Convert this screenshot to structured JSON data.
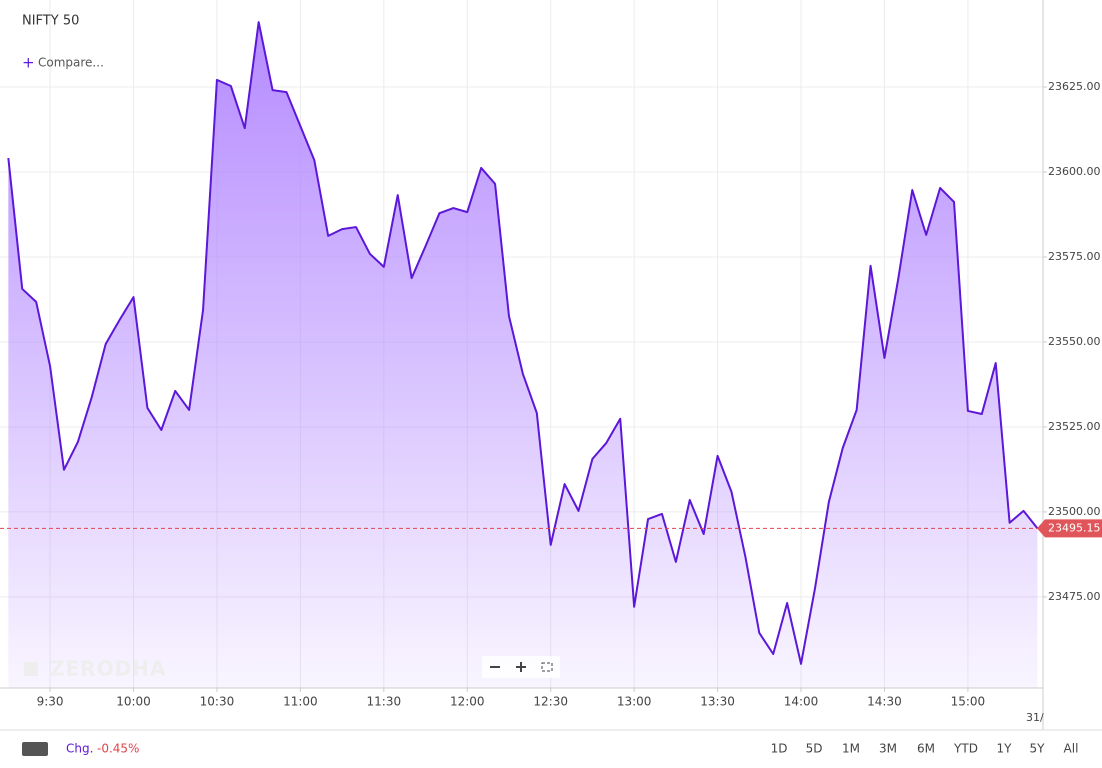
{
  "chart_data": {
    "type": "area-line",
    "title": "NIFTY 50",
    "x": [
      555,
      560,
      565,
      570,
      575,
      580,
      585,
      590,
      595,
      600,
      605,
      610,
      615,
      620,
      625,
      630,
      635,
      640,
      645,
      650,
      655,
      660,
      665,
      670,
      675,
      680,
      685,
      690,
      695,
      700,
      705,
      710,
      715,
      720,
      725,
      730,
      735,
      740,
      745,
      750,
      755,
      760,
      765,
      770,
      775,
      780,
      785,
      790,
      795,
      800,
      805,
      810,
      815,
      820,
      825,
      830,
      835,
      840,
      845,
      850,
      855,
      860,
      865,
      870,
      875,
      880,
      885,
      890,
      895,
      900,
      905,
      910,
      915,
      920,
      925
    ],
    "values": [
      23604.1,
      23565.6,
      23561.8,
      23542.9,
      23512.4,
      23520.6,
      23533.8,
      23549.4,
      23556.5,
      23563.2,
      23530.6,
      23524.1,
      23535.6,
      23530.0,
      23559.4,
      23627.1,
      23625.3,
      23612.9,
      23644.1,
      23624.1,
      23623.5,
      23613.5,
      23603.5,
      23581.2,
      23583.2,
      23583.8,
      23575.9,
      23572.1,
      23593.2,
      23568.8,
      23578.2,
      23587.9,
      23589.4,
      23588.2,
      23601.2,
      23596.5,
      23557.6,
      23540.6,
      23529.1,
      23490.3,
      23508.2,
      23500.3,
      23515.6,
      23520.3,
      23527.4,
      23472.1,
      23497.9,
      23499.4,
      23485.3,
      23503.5,
      23493.5,
      23516.5,
      23505.9,
      23486.8,
      23464.4,
      23458.2,
      23473.2,
      23455.3,
      23477.4,
      23502.9,
      23518.8,
      23530.0,
      23572.4,
      23545.3,
      23568.8,
      23594.7,
      23581.5,
      23595.3,
      23591.2,
      23529.7,
      23528.8,
      23543.8,
      23496.8,
      23500.3,
      23495.15
    ],
    "color": "#5c17d8",
    "fill_color": "#b185ff",
    "xlim": [
      552,
      927
    ],
    "xticks": [
      {
        "value": 570,
        "label": "9:30"
      },
      {
        "value": 600,
        "label": "10:00"
      },
      {
        "value": 630,
        "label": "10:30"
      },
      {
        "value": 660,
        "label": "11:00"
      },
      {
        "value": 690,
        "label": "11:30"
      },
      {
        "value": 720,
        "label": "12:00"
      },
      {
        "value": 750,
        "label": "12:30"
      },
      {
        "value": 780,
        "label": "13:00"
      },
      {
        "value": 810,
        "label": "13:30"
      },
      {
        "value": 840,
        "label": "14:00"
      },
      {
        "value": 870,
        "label": "14:30"
      },
      {
        "value": 900,
        "label": "15:00"
      }
    ],
    "ylim": [
      23448.2,
      23650.6
    ],
    "yticks": [
      {
        "value": 23475,
        "label": "23475.00"
      },
      {
        "value": 23500,
        "label": "23500.00"
      },
      {
        "value": 23525,
        "label": "23525.00"
      },
      {
        "value": 23550,
        "label": "23550.00"
      },
      {
        "value": 23575,
        "label": "23575.00"
      },
      {
        "value": 23600,
        "label": "23600.00"
      },
      {
        "value": 23625,
        "label": "23625.00"
      }
    ],
    "grid": true
  },
  "ui": {
    "compare": "Compare...",
    "watermark": "ZERODHA",
    "date_label": "31/",
    "change_label": "Chg.",
    "change_value": "-0.45%",
    "periods": [
      "1D",
      "5D",
      "1M",
      "3M",
      "6M",
      "YTD",
      "1Y",
      "5Y",
      "All"
    ]
  }
}
